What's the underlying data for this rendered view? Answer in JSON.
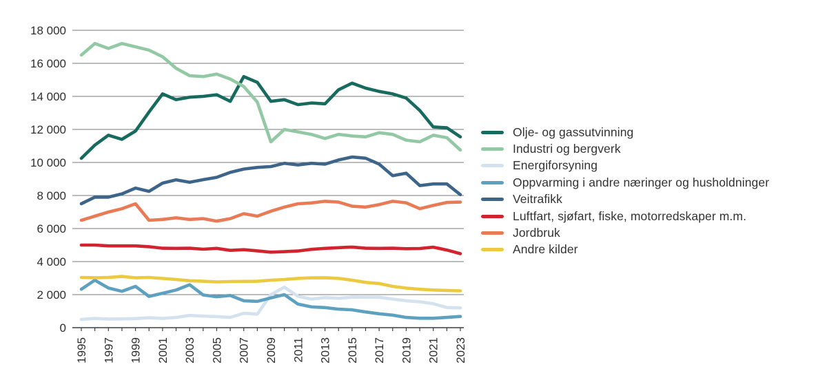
{
  "chart_data": {
    "type": "line",
    "title": "",
    "xlabel": "",
    "ylabel": "",
    "x": [
      1995,
      1996,
      1997,
      1998,
      1999,
      2000,
      2001,
      2002,
      2003,
      2004,
      2005,
      2006,
      2007,
      2008,
      2009,
      2010,
      2011,
      2012,
      2013,
      2014,
      2015,
      2016,
      2017,
      2018,
      2019,
      2020,
      2021,
      2022,
      2023
    ],
    "x_tick_labels": [
      "1995",
      "1997",
      "1999",
      "2001",
      "2003",
      "2005",
      "2007",
      "2009",
      "2011",
      "2013",
      "2015",
      "2017",
      "2019",
      "2021",
      "2023"
    ],
    "ylim": [
      0,
      18000
    ],
    "y_ticks": [
      0,
      2000,
      4000,
      6000,
      8000,
      10000,
      12000,
      14000,
      16000,
      18000
    ],
    "y_tick_labels": [
      "0",
      "2 000",
      "4 000",
      "6 000",
      "8 000",
      "10 000",
      "12 000",
      "14 000",
      "16 000",
      "18 000"
    ],
    "grid": true,
    "legend_position": "right",
    "grid_color": "#7a7a7a",
    "axis_color": "#3d3d3d",
    "series": [
      {
        "name": "Olje- og gassutvinning",
        "color": "#176a5e",
        "values": [
          10250,
          11050,
          11650,
          11400,
          11900,
          13050,
          14150,
          13800,
          13950,
          14000,
          14100,
          13700,
          15200,
          14850,
          13700,
          13800,
          13500,
          13600,
          13550,
          14400,
          14800,
          14500,
          14300,
          14150,
          13900,
          13150,
          12150,
          12100,
          11550
        ]
      },
      {
        "name": "Industri og bergverk",
        "color": "#92c8a3",
        "values": [
          16500,
          17200,
          16900,
          17200,
          17000,
          16800,
          16400,
          15700,
          15250,
          15200,
          15350,
          15050,
          14600,
          13650,
          11250,
          12000,
          11850,
          11700,
          11450,
          11700,
          11600,
          11550,
          11800,
          11700,
          11350,
          11250,
          11650,
          11500,
          10750
        ]
      },
      {
        "name": "Energiforsyning",
        "color": "#d3e2ee",
        "values": [
          500,
          560,
          520,
          530,
          550,
          600,
          560,
          620,
          740,
          700,
          670,
          620,
          870,
          820,
          2000,
          2450,
          1900,
          1730,
          1820,
          1780,
          1850,
          1840,
          1840,
          1730,
          1630,
          1565,
          1450,
          1215,
          1200
        ]
      },
      {
        "name": "Oppvarming i andre næringer og husholdninger",
        "color": "#5da0bf",
        "values": [
          2325,
          2875,
          2400,
          2200,
          2500,
          1890,
          2085,
          2280,
          2600,
          1980,
          1870,
          1950,
          1630,
          1590,
          1800,
          2000,
          1425,
          1260,
          1215,
          1120,
          1080,
          950,
          840,
          760,
          620,
          570,
          570,
          620,
          680
        ]
      },
      {
        "name": "Veitrafikk",
        "color": "#3c6589",
        "values": [
          7500,
          7900,
          7900,
          8100,
          8450,
          8250,
          8750,
          8950,
          8800,
          8960,
          9100,
          9400,
          9600,
          9700,
          9750,
          9950,
          9850,
          9950,
          9900,
          10150,
          10330,
          10260,
          9900,
          9200,
          9350,
          8600,
          8700,
          8700,
          8050
        ]
      },
      {
        "name": "Luftfart, sjøfart, fiske, motorredskaper m.m.",
        "color": "#d0252f",
        "values": [
          5000,
          5000,
          4950,
          4950,
          4950,
          4900,
          4810,
          4800,
          4810,
          4750,
          4800,
          4680,
          4720,
          4650,
          4570,
          4600,
          4640,
          4740,
          4800,
          4840,
          4880,
          4810,
          4800,
          4810,
          4780,
          4790,
          4870,
          4700,
          4480
        ]
      },
      {
        "name": "Jordbruk",
        "color": "#e87a55",
        "values": [
          6500,
          6750,
          7000,
          7200,
          7500,
          6500,
          6550,
          6650,
          6550,
          6600,
          6450,
          6600,
          6900,
          6750,
          7050,
          7300,
          7500,
          7550,
          7650,
          7600,
          7350,
          7300,
          7450,
          7650,
          7560,
          7200,
          7400,
          7580,
          7600
        ]
      },
      {
        "name": "Andre kilder",
        "color": "#ebc940",
        "values": [
          3040,
          3020,
          3040,
          3100,
          3020,
          3040,
          2980,
          2915,
          2840,
          2810,
          2770,
          2790,
          2800,
          2810,
          2875,
          2915,
          2985,
          3015,
          3025,
          2985,
          2875,
          2740,
          2670,
          2500,
          2395,
          2325,
          2280,
          2255,
          2230
        ]
      }
    ]
  }
}
